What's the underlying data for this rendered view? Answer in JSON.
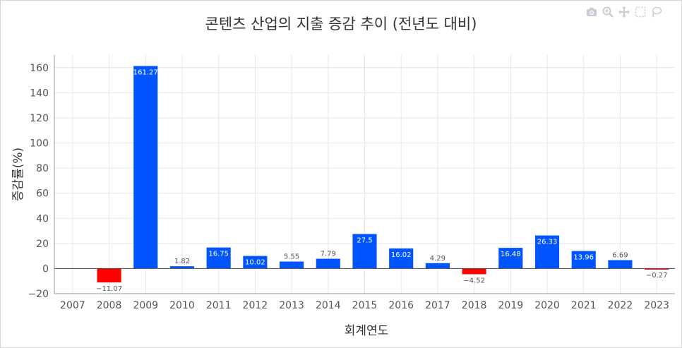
{
  "chart_data": {
    "type": "bar",
    "title": "콘텐츠 산업의 지출 증감 추이 (전년도 대비)",
    "xlabel": "회계연도",
    "ylabel": "증감률(%)",
    "categories": [
      "2007",
      "2008",
      "2009",
      "2010",
      "2011",
      "2012",
      "2013",
      "2014",
      "2015",
      "2016",
      "2017",
      "2018",
      "2019",
      "2020",
      "2021",
      "2022",
      "2023"
    ],
    "values": [
      null,
      -11.07,
      161.27,
      1.82,
      16.75,
      10.02,
      5.55,
      7.79,
      27.5,
      16.02,
      4.29,
      -4.52,
      16.48,
      26.33,
      13.96,
      6.69,
      -0.27
    ],
    "labels": [
      "",
      "−11.07",
      "161.27",
      "1.82",
      "16.75",
      "10.02",
      "5.55",
      "7.79",
      "27.5",
      "16.02",
      "4.29",
      "−4.52",
      "16.48",
      "26.33",
      "13.96",
      "6.69",
      "−0.27"
    ],
    "ylim": [
      -20,
      170
    ],
    "yticks": [
      -20,
      0,
      20,
      40,
      60,
      80,
      100,
      120,
      140,
      160
    ],
    "ytick_labels": [
      "−20",
      "0",
      "20",
      "40",
      "60",
      "80",
      "100",
      "120",
      "140",
      "160"
    ],
    "grid": true,
    "colors": {
      "positive": "#0055ff",
      "negative": "#ff0000",
      "grid": "#e6e6e6",
      "zero_line": "#444444",
      "axis": "#999999"
    }
  },
  "modebar": [
    "camera-icon",
    "zoom-icon",
    "pan-icon",
    "box-select-icon",
    "lasso-icon"
  ]
}
